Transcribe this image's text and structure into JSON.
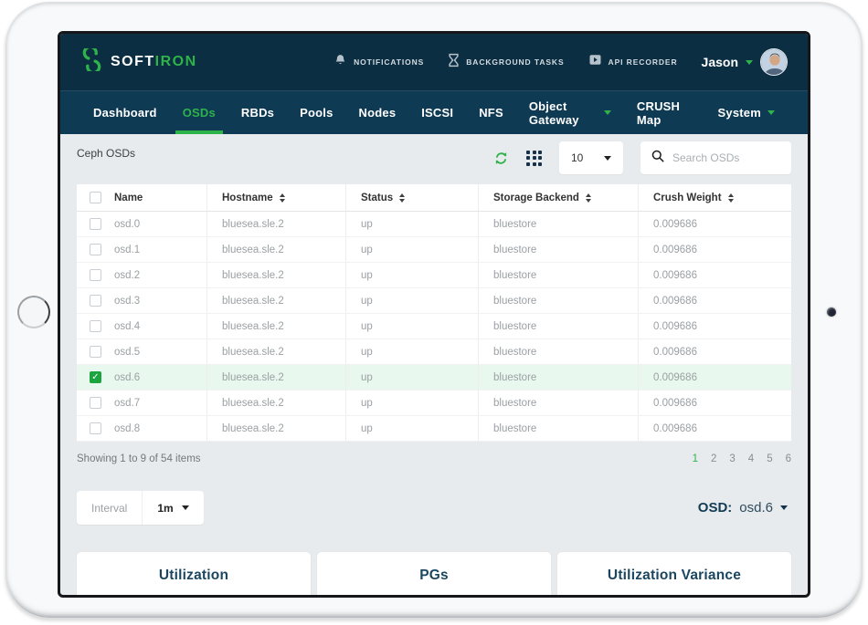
{
  "brand": {
    "primary": "SOFT",
    "secondary": "IRON"
  },
  "header": {
    "actions": [
      {
        "label": "NOTIFICATIONS",
        "icon": "bell-icon"
      },
      {
        "label": "BACKGROUND TASKS",
        "icon": "hourglass-icon"
      },
      {
        "label": "API RECORDER",
        "icon": "play-icon"
      }
    ],
    "user": {
      "name": "Jason"
    }
  },
  "nav": {
    "items": [
      {
        "label": "Dashboard",
        "active": false,
        "dropdown": false
      },
      {
        "label": "OSDs",
        "active": true,
        "dropdown": false
      },
      {
        "label": "RBDs",
        "active": false,
        "dropdown": false
      },
      {
        "label": "Pools",
        "active": false,
        "dropdown": false
      },
      {
        "label": "Nodes",
        "active": false,
        "dropdown": false
      },
      {
        "label": "ISCSI",
        "active": false,
        "dropdown": false
      },
      {
        "label": "NFS",
        "active": false,
        "dropdown": false
      },
      {
        "label": "Object Gateway",
        "active": false,
        "dropdown": true
      },
      {
        "label": "CRUSH Map",
        "active": false,
        "dropdown": false
      },
      {
        "label": "System",
        "active": false,
        "dropdown": true
      }
    ]
  },
  "breadcrumb": "Ceph OSDs",
  "toolbar": {
    "page_size": "10",
    "search_placeholder": "Search OSDs"
  },
  "table": {
    "columns": [
      {
        "label": "Name",
        "sortable": false
      },
      {
        "label": "Hostname",
        "sortable": true
      },
      {
        "label": "Status",
        "sortable": true
      },
      {
        "label": "Storage Backend",
        "sortable": true
      },
      {
        "label": "Crush Weight",
        "sortable": true
      }
    ],
    "rows": [
      {
        "name": "osd.0",
        "hostname": "bluesea.sle.2",
        "status": "up",
        "backend": "bluestore",
        "weight": "0.009686",
        "selected": false
      },
      {
        "name": "osd.1",
        "hostname": "bluesea.sle.2",
        "status": "up",
        "backend": "bluestore",
        "weight": "0.009686",
        "selected": false
      },
      {
        "name": "osd.2",
        "hostname": "bluesea.sle.2",
        "status": "up",
        "backend": "bluestore",
        "weight": "0.009686",
        "selected": false
      },
      {
        "name": "osd.3",
        "hostname": "bluesea.sle.2",
        "status": "up",
        "backend": "bluestore",
        "weight": "0.009686",
        "selected": false
      },
      {
        "name": "osd.4",
        "hostname": "bluesea.sle.2",
        "status": "up",
        "backend": "bluestore",
        "weight": "0.009686",
        "selected": false
      },
      {
        "name": "osd.5",
        "hostname": "bluesea.sle.2",
        "status": "up",
        "backend": "bluestore",
        "weight": "0.009686",
        "selected": false
      },
      {
        "name": "osd.6",
        "hostname": "bluesea.sle.2",
        "status": "up",
        "backend": "bluestore",
        "weight": "0.009686",
        "selected": true
      },
      {
        "name": "osd.7",
        "hostname": "bluesea.sle.2",
        "status": "up",
        "backend": "bluestore",
        "weight": "0.009686",
        "selected": false
      },
      {
        "name": "osd.8",
        "hostname": "bluesea.sle.2",
        "status": "up",
        "backend": "bluestore",
        "weight": "0.009686",
        "selected": false
      }
    ]
  },
  "footer": {
    "summary": "Showing 1 to 9 of 54 items",
    "pages": [
      "1",
      "2",
      "3",
      "4",
      "5",
      "6"
    ],
    "active_page": "1"
  },
  "interval": {
    "label": "Interval",
    "value": "1m"
  },
  "osd_selector": {
    "label": "OSD:",
    "value": "osd.6"
  },
  "charts": [
    {
      "title": "Utilization"
    },
    {
      "title": "PGs"
    },
    {
      "title": "Utilization Variance"
    }
  ],
  "colors": {
    "accent_green": "#2eb24a",
    "header_navy": "#0b2e42",
    "nav_navy": "#0f3a54",
    "content_bg": "#e8ebed",
    "selected_row_bg": "#e9f8ee"
  }
}
